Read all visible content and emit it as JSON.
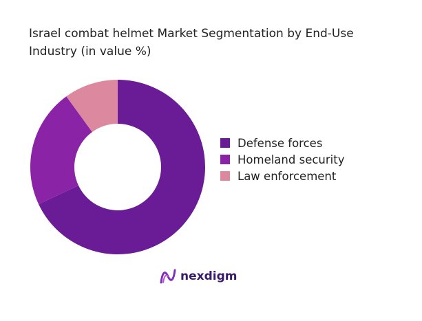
{
  "chart_data": {
    "type": "pie",
    "donut": true,
    "title": "Israel combat helmet Market Segmentation by End-Use Industry (in value %)",
    "categories": [
      "Defense forces",
      "Homeland security",
      "Law enforcement"
    ],
    "values": [
      68,
      22,
      10
    ],
    "colors": [
      "#6a1b96",
      "#8b23a6",
      "#dc889e"
    ],
    "legend_position": "right"
  },
  "brand": {
    "name": "nexdigm",
    "color": "#3a1b6b"
  }
}
